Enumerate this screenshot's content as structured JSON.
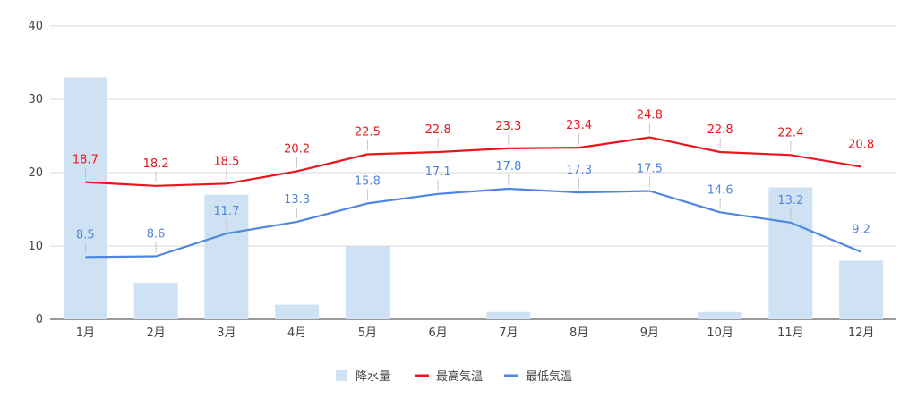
{
  "chart_data": {
    "type": "bar",
    "categories": [
      "1月",
      "2月",
      "3月",
      "4月",
      "5月",
      "6月",
      "7月",
      "8月",
      "9月",
      "10月",
      "11月",
      "12月"
    ],
    "series": [
      {
        "name": "降水量",
        "kind": "bar",
        "color": "#cfe2f3",
        "values": [
          33,
          5,
          17,
          2,
          10,
          0,
          1,
          0,
          0,
          1,
          18,
          8
        ]
      },
      {
        "name": "最高気温",
        "kind": "line",
        "color": "#e8171c",
        "values": [
          18.7,
          18.2,
          18.5,
          20.2,
          22.5,
          22.8,
          23.3,
          23.4,
          24.8,
          22.8,
          22.4,
          20.8
        ]
      },
      {
        "name": "最低気温",
        "kind": "line",
        "color": "#4f86e0",
        "values": [
          8.5,
          8.6,
          11.7,
          13.3,
          15.8,
          17.1,
          17.8,
          17.3,
          17.5,
          14.6,
          13.2,
          9.2
        ]
      }
    ],
    "ylim": [
      0,
      40
    ],
    "yticks": [
      0,
      10,
      20,
      30,
      40
    ],
    "grid": true,
    "legend": "bottom",
    "data_labels": "line series"
  }
}
